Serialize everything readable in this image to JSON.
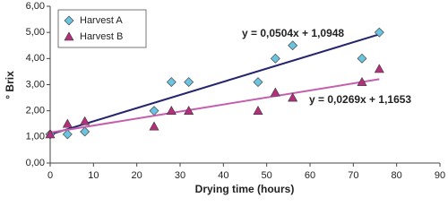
{
  "chart_data": {
    "type": "scatter",
    "xlabel": "Drying time (hours)",
    "ylabel": "° Brix",
    "xlim": [
      0,
      90
    ],
    "xticks": [
      0,
      10,
      20,
      30,
      40,
      50,
      60,
      70,
      80,
      90
    ],
    "ylim": [
      0,
      6
    ],
    "yticks": [
      {
        "value": 0,
        "label": "0,00"
      },
      {
        "value": 1,
        "label": "1,00"
      },
      {
        "value": 2,
        "label": "2,00"
      },
      {
        "value": 3,
        "label": "3,00"
      },
      {
        "value": 4,
        "label": "4,00"
      },
      {
        "value": 5,
        "label": "5,00"
      },
      {
        "value": 6,
        "label": "6,00"
      }
    ],
    "legend": "upper left",
    "series": [
      {
        "name": "Harvest A",
        "marker": "diamond",
        "color": "#6cc3df",
        "line_color": "#25246e",
        "x": [
          0,
          4,
          8,
          24,
          28,
          32,
          48,
          52,
          56,
          72,
          76
        ],
        "values": [
          1.1,
          1.1,
          1.2,
          2.0,
          3.1,
          3.1,
          3.1,
          4.0,
          4.5,
          4.0,
          5.0
        ],
        "trendline": {
          "slope": 0.0504,
          "intercept": 1.0948,
          "label": "y = 0,0504x + 1,0948"
        }
      },
      {
        "name": "Harvest B",
        "marker": "triangle",
        "color": "#b3317c",
        "line_color": "#c45fae",
        "x": [
          0,
          4,
          8,
          24,
          28,
          32,
          48,
          52,
          56,
          72,
          76
        ],
        "values": [
          1.1,
          1.5,
          1.6,
          1.4,
          2.0,
          2.0,
          2.0,
          2.7,
          2.5,
          3.1,
          3.6
        ],
        "trendline": {
          "slope": 0.0269,
          "intercept": 1.1653,
          "label": "y = 0,0269x + 1,1653"
        }
      }
    ]
  }
}
